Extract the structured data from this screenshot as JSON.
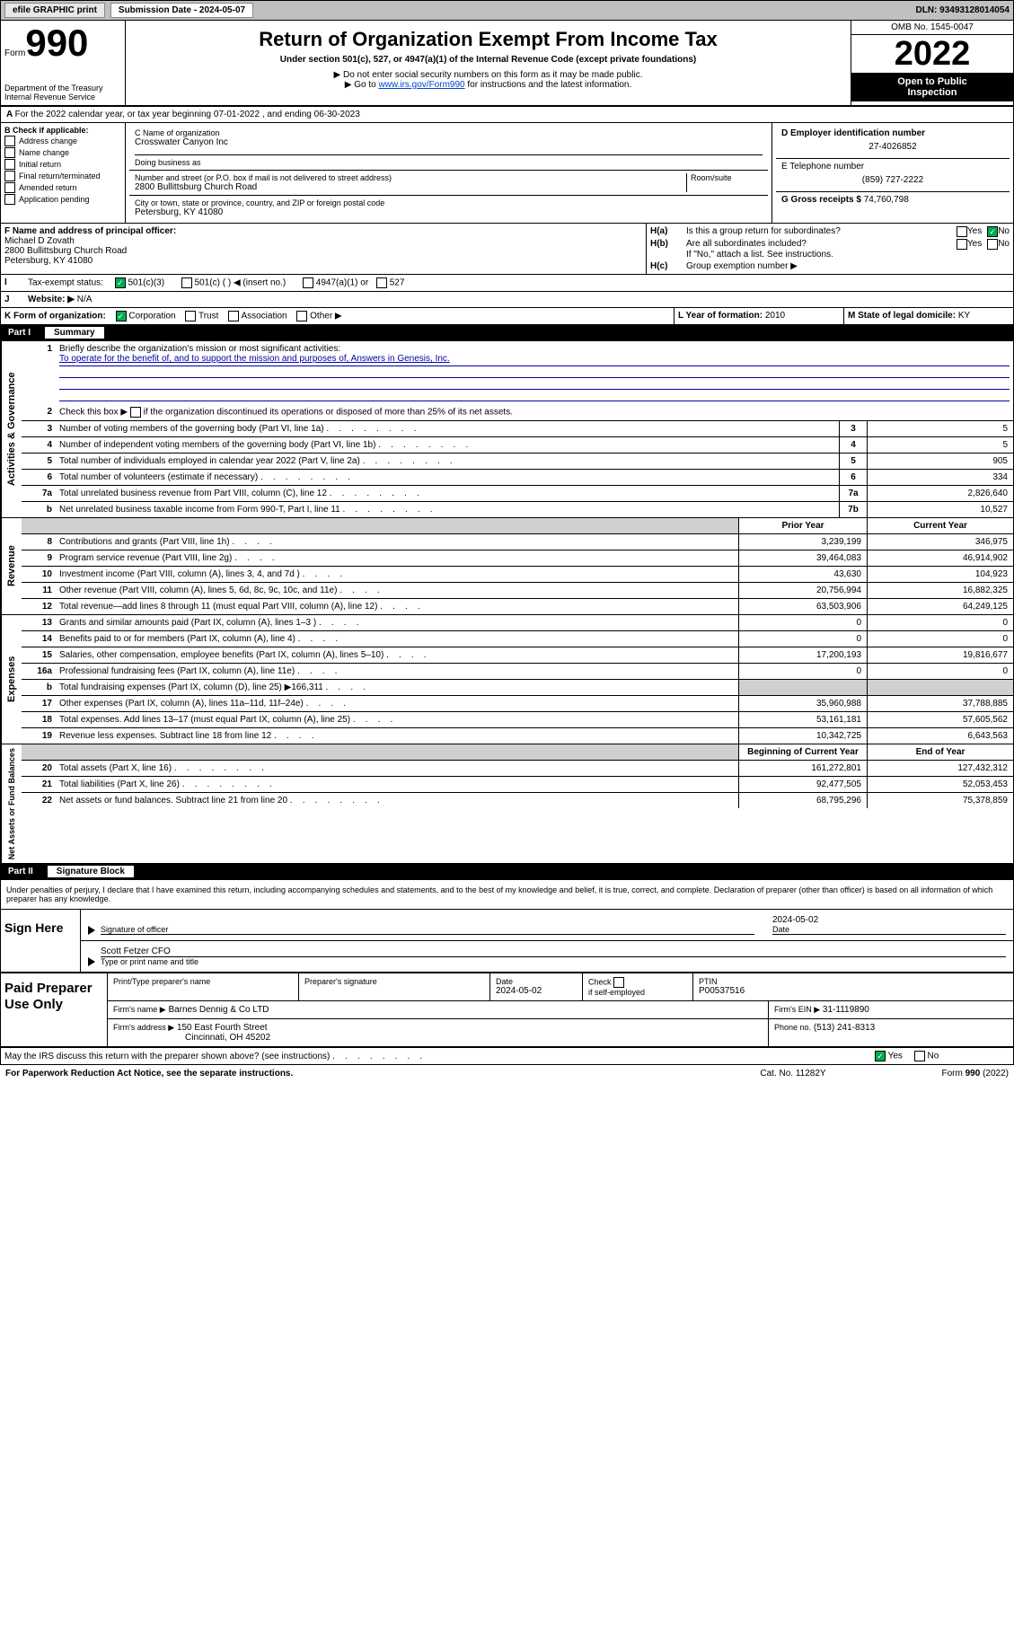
{
  "topbar": {
    "efile": "efile GRAPHIC print",
    "sub_date_label": "Submission Date - 2024-05-07",
    "dln": "DLN: 93493128014054"
  },
  "header": {
    "form_word": "Form",
    "form_no": "990",
    "title": "Return of Organization Exempt From Income Tax",
    "subtitle": "Under section 501(c), 527, or 4947(a)(1) of the Internal Revenue Code (except private foundations)",
    "inst1": "▶ Do not enter social security numbers on this form as it may be made public.",
    "inst2_pre": "▶ Go to ",
    "inst2_link": "www.irs.gov/Form990",
    "inst2_post": " for instructions and the latest information.",
    "omb": "OMB No. 1545-0047",
    "year": "2022",
    "open1": "Open to Public",
    "open2": "Inspection",
    "dept": "Department of the Treasury",
    "irs": "Internal Revenue Service"
  },
  "lineA": "For the 2022 calendar year, or tax year beginning 07-01-2022    , and ending 06-30-2023",
  "boxB": {
    "label": "B Check if applicable:",
    "opts": [
      "Address change",
      "Name change",
      "Initial return",
      "Final return/terminated",
      "Amended return",
      "Application pending"
    ]
  },
  "boxC": {
    "c_label": "C Name of organization",
    "org_name": "Crosswater Canyon Inc",
    "dba_label": "Doing business as",
    "street_label": "Number and street (or P.O. box if mail is not delivered to street address)",
    "room_label": "Room/suite",
    "street": "2800 Bullittsburg Church Road",
    "city_label": "City or town, state or province, country, and ZIP or foreign postal code",
    "city": "Petersburg, KY  41080"
  },
  "boxD": {
    "label": "D Employer identification number",
    "val": "27-4026852"
  },
  "boxE": {
    "label": "E Telephone number",
    "val": "(859) 727-2222"
  },
  "boxG": {
    "label": "G Gross receipts $",
    "val": "74,760,798"
  },
  "boxF": {
    "label": "F Name and address of principal officer:",
    "name": "Michael D Zovath",
    "street": "2800 Bullittsburg Church Road",
    "city": "Petersburg, KY  41080"
  },
  "boxH": {
    "ha_label": "Is this a group return for subordinates?",
    "ha_prefix": "H(a)",
    "hb_prefix": "H(b)",
    "hb_label": "Are all subordinates included?",
    "hb_note": "If \"No,\" attach a list. See instructions.",
    "hc_prefix": "H(c)",
    "hc_label": "Group exemption number ▶"
  },
  "boxI": {
    "label": "Tax-exempt status:",
    "opts": [
      "501(c)(3)",
      "501(c) (  ) ◀ (insert no.)",
      "4947(a)(1) or",
      "527"
    ]
  },
  "boxJ": {
    "label": "Website: ▶",
    "val": "N/A"
  },
  "boxK": {
    "label": "K Form of organization:",
    "opts": [
      "Corporation",
      "Trust",
      "Association",
      "Other ▶"
    ]
  },
  "boxL": {
    "label": "L Year of formation:",
    "val": "2010"
  },
  "boxM": {
    "label": "M State of legal domicile:",
    "val": "KY"
  },
  "part1": {
    "num": "Part I",
    "title": "Summary"
  },
  "summary": {
    "line1": {
      "num": "1",
      "label": "Briefly describe the organization's mission or most significant activities:",
      "text": "To operate for the benefit of, and to support the mission and purposes of, Answers in Genesis, Inc."
    },
    "line2": {
      "num": "2",
      "label": "Check this box ▶         if the organization discontinued its operations or disposed of more than 25% of its net assets."
    },
    "gov_label": "Activities & Governance",
    "rev_label": "Revenue",
    "exp_label": "Expenses",
    "net_label": "Net Assets or Fund Balances",
    "rows_gov": [
      {
        "num": "3",
        "desc": "Number of voting members of the governing body (Part VI, line 1a)",
        "box": "3",
        "val": "5"
      },
      {
        "num": "4",
        "desc": "Number of independent voting members of the governing body (Part VI, line 1b)",
        "box": "4",
        "val": "5"
      },
      {
        "num": "5",
        "desc": "Total number of individuals employed in calendar year 2022 (Part V, line 2a)",
        "box": "5",
        "val": "905"
      },
      {
        "num": "6",
        "desc": "Total number of volunteers (estimate if necessary)",
        "box": "6",
        "val": "334"
      },
      {
        "num": "7a",
        "desc": "Total unrelated business revenue from Part VIII, column (C), line 12",
        "box": "7a",
        "val": "2,826,640"
      },
      {
        "num": "b",
        "desc": "Net unrelated business taxable income from Form 990-T, Part I, line 11",
        "box": "7b",
        "val": "10,527"
      }
    ],
    "col_headers": {
      "num": "",
      "desc": "",
      "prior": "Prior Year",
      "current": "Current Year"
    },
    "rows_rev": [
      {
        "num": "8",
        "desc": "Contributions and grants (Part VIII, line 1h)",
        "prior": "3,239,199",
        "current": "346,975"
      },
      {
        "num": "9",
        "desc": "Program service revenue (Part VIII, line 2g)",
        "prior": "39,464,083",
        "current": "46,914,902"
      },
      {
        "num": "10",
        "desc": "Investment income (Part VIII, column (A), lines 3, 4, and 7d )",
        "prior": "43,630",
        "current": "104,923"
      },
      {
        "num": "11",
        "desc": "Other revenue (Part VIII, column (A), lines 5, 6d, 8c, 9c, 10c, and 11e)",
        "prior": "20,756,994",
        "current": "16,882,325"
      },
      {
        "num": "12",
        "desc": "Total revenue—add lines 8 through 11 (must equal Part VIII, column (A), line 12)",
        "prior": "63,503,906",
        "current": "64,249,125"
      }
    ],
    "rows_exp": [
      {
        "num": "13",
        "desc": "Grants and similar amounts paid (Part IX, column (A), lines 1–3 )",
        "prior": "0",
        "current": "0"
      },
      {
        "num": "14",
        "desc": "Benefits paid to or for members (Part IX, column (A), line 4)",
        "prior": "0",
        "current": "0"
      },
      {
        "num": "15",
        "desc": "Salaries, other compensation, employee benefits (Part IX, column (A), lines 5–10)",
        "prior": "17,200,193",
        "current": "19,816,677"
      },
      {
        "num": "16a",
        "desc": "Professional fundraising fees (Part IX, column (A), line 11e)",
        "prior": "0",
        "current": "0"
      },
      {
        "num": "b",
        "desc": "Total fundraising expenses (Part IX, column (D), line 25) ▶166,311",
        "prior": "gray",
        "current": "gray"
      },
      {
        "num": "17",
        "desc": "Other expenses (Part IX, column (A), lines 11a–11d, 11f–24e)",
        "prior": "35,960,988",
        "current": "37,788,885"
      },
      {
        "num": "18",
        "desc": "Total expenses. Add lines 13–17 (must equal Part IX, column (A), line 25)",
        "prior": "53,161,181",
        "current": "57,605,562"
      },
      {
        "num": "19",
        "desc": "Revenue less expenses. Subtract line 18 from line 12",
        "prior": "10,342,725",
        "current": "6,643,563"
      }
    ],
    "net_headers": {
      "prior": "Beginning of Current Year",
      "current": "End of Year"
    },
    "rows_net": [
      {
        "num": "20",
        "desc": "Total assets (Part X, line 16)",
        "prior": "161,272,801",
        "current": "127,432,312"
      },
      {
        "num": "21",
        "desc": "Total liabilities (Part X, line 26)",
        "prior": "92,477,505",
        "current": "52,053,453"
      },
      {
        "num": "22",
        "desc": "Net assets or fund balances. Subtract line 21 from line 20",
        "prior": "68,795,296",
        "current": "75,378,859"
      }
    ]
  },
  "part2": {
    "num": "Part II",
    "title": "Signature Block"
  },
  "sig": {
    "penalty": "Under penalties of perjury, I declare that I have examined this return, including accompanying schedules and statements, and to the best of my knowledge and belief, it is true, correct, and complete. Declaration of preparer (other than officer) is based on all information of which preparer has any knowledge.",
    "sign_here": "Sign Here",
    "sig_officer": "Signature of officer",
    "date": "2024-05-02",
    "date_label": "Date",
    "type_name": "Scott Fetzer CFO",
    "type_label": "Type or print name and title"
  },
  "paid": {
    "title": "Paid Preparer Use Only",
    "h1": "Print/Type preparer's name",
    "h2": "Preparer's signature",
    "h3_label": "Date",
    "h3": "2024-05-02",
    "h4_label": "Check",
    "h4_sub": "if self-employed",
    "h5_label": "PTIN",
    "h5": "P00537516",
    "firm_label": "Firm's name    ▶",
    "firm": "Barnes Dennig & Co LTD",
    "ein_label": "Firm's EIN ▶",
    "ein": "31-1119890",
    "addr_label": "Firm's address ▶",
    "addr1": "150 East Fourth Street",
    "addr2": "Cincinnati, OH  45202",
    "phone_label": "Phone no.",
    "phone": "(513) 241-8313"
  },
  "bottom": {
    "discuss": "May the IRS discuss this return with the preparer shown above? (see instructions)",
    "paperwork": "For Paperwork Reduction Act Notice, see the separate instructions.",
    "cat": "Cat. No. 11282Y",
    "form": "Form 990 (2022)"
  },
  "yes": "Yes",
  "no": "No"
}
